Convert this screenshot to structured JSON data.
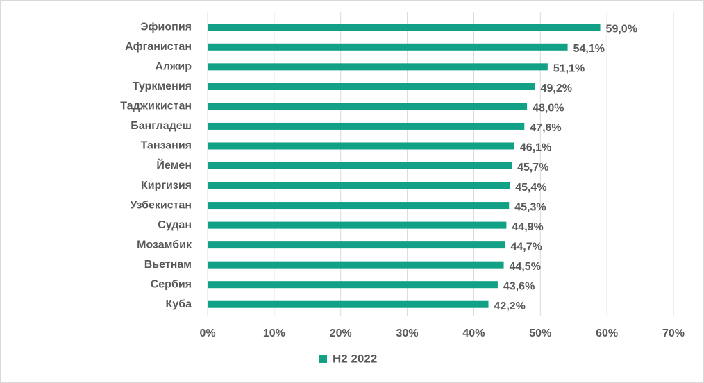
{
  "chart_data": {
    "type": "bar",
    "orientation": "horizontal",
    "categories": [
      "Эфиопия",
      "Афганистан",
      "Алжир",
      "Туркмения",
      "Таджикистан",
      "Бангладеш",
      "Танзания",
      "Йемен",
      "Киргизия",
      "Узбекистан",
      "Судан",
      "Мозамбик",
      "Вьетнам",
      "Сербия",
      "Куба"
    ],
    "series": [
      {
        "name": "H2 2022",
        "color": "#12a086",
        "values": [
          59.0,
          54.1,
          51.1,
          49.2,
          48.0,
          47.6,
          46.1,
          45.7,
          45.4,
          45.3,
          44.9,
          44.7,
          44.5,
          43.6,
          42.2
        ],
        "value_labels": [
          "59,0%",
          "54,1%",
          "51,1%",
          "49,2%",
          "48,0%",
          "47,6%",
          "46,1%",
          "45,7%",
          "45,4%",
          "45,3%",
          "44,9%",
          "44,7%",
          "44,5%",
          "43,6%",
          "42,2%"
        ]
      }
    ],
    "xlim": [
      0,
      70
    ],
    "xticks": [
      {
        "value": 0,
        "label": "0%"
      },
      {
        "value": 10,
        "label": "10%"
      },
      {
        "value": 20,
        "label": "20%"
      },
      {
        "value": 30,
        "label": "30%"
      },
      {
        "value": 40,
        "label": "40%"
      },
      {
        "value": 50,
        "label": "50%"
      },
      {
        "value": 60,
        "label": "60%"
      },
      {
        "value": 70,
        "label": "70%"
      }
    ],
    "grid": true,
    "legend": "bottom"
  }
}
